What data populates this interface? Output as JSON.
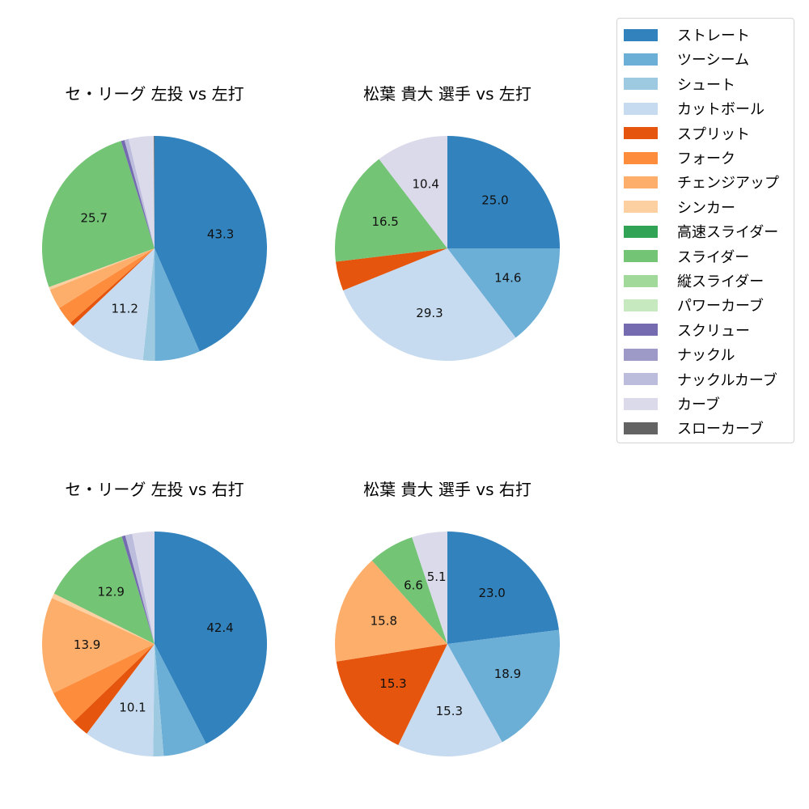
{
  "legend": {
    "items": [
      {
        "label": "ストレート",
        "color": "#3182bd"
      },
      {
        "label": "ツーシーム",
        "color": "#6baed6"
      },
      {
        "label": "シュート",
        "color": "#9ecae1"
      },
      {
        "label": "カットボール",
        "color": "#c6dbef"
      },
      {
        "label": "スプリット",
        "color": "#e6550d"
      },
      {
        "label": "フォーク",
        "color": "#fd8d3c"
      },
      {
        "label": "チェンジアップ",
        "color": "#fdae6b"
      },
      {
        "label": "シンカー",
        "color": "#fdd0a2"
      },
      {
        "label": "高速スライダー",
        "color": "#31a354"
      },
      {
        "label": "スライダー",
        "color": "#74c476"
      },
      {
        "label": "縦スライダー",
        "color": "#a1d99b"
      },
      {
        "label": "パワーカーブ",
        "color": "#c7e9c0"
      },
      {
        "label": "スクリュー",
        "color": "#756bb1"
      },
      {
        "label": "ナックル",
        "color": "#9e9ac8"
      },
      {
        "label": "ナックルカーブ",
        "color": "#bcbddc"
      },
      {
        "label": "カーブ",
        "color": "#dadaeb"
      },
      {
        "label": "スローカーブ",
        "color": "#636363"
      }
    ]
  },
  "chart_data": [
    {
      "type": "pie",
      "title": "セ・リーグ 左投 vs 左打",
      "categories": [
        "ストレート",
        "ツーシーム",
        "シュート",
        "カットボール",
        "スプリット",
        "フォーク",
        "チェンジアップ",
        "シンカー",
        "スライダー",
        "スクリュー",
        "ナックルカーブ",
        "カーブ",
        "スローカーブ"
      ],
      "values": [
        43.3,
        6.5,
        1.7,
        11.2,
        0.6,
        2.6,
        2.9,
        0.4,
        25.7,
        0.5,
        0.6,
        3.6,
        0.1
      ],
      "colors": [
        "#3182bd",
        "#6baed6",
        "#9ecae1",
        "#c6dbef",
        "#e6550d",
        "#fd8d3c",
        "#fdae6b",
        "#fdd0a2",
        "#74c476",
        "#756bb1",
        "#bcbddc",
        "#dadaeb",
        "#636363"
      ],
      "labels_shown": [
        "43.3",
        "",
        "",
        "11.2",
        "",
        "",
        "",
        "",
        "25.7",
        "",
        "",
        "",
        ""
      ],
      "start_angle": 90,
      "direction": "clockwise"
    },
    {
      "type": "pie",
      "title": "松葉 貴大 選手 vs 左打",
      "categories": [
        "ストレート",
        "ツーシーム",
        "カットボール",
        "スプリット",
        "スライダー",
        "カーブ"
      ],
      "values": [
        25.0,
        14.6,
        29.3,
        4.2,
        16.5,
        10.4
      ],
      "colors": [
        "#3182bd",
        "#6baed6",
        "#c6dbef",
        "#e6550d",
        "#74c476",
        "#dadaeb"
      ],
      "labels_shown": [
        "25.0",
        "14.6",
        "29.3",
        "",
        "16.5",
        "10.4"
      ],
      "start_angle": 90,
      "direction": "clockwise"
    },
    {
      "type": "pie",
      "title": "セ・リーグ 左投 vs 右打",
      "categories": [
        "ストレート",
        "ツーシーム",
        "シュート",
        "カットボール",
        "スプリット",
        "フォーク",
        "チェンジアップ",
        "シンカー",
        "スライダー",
        "スクリュー",
        "ナックルカーブ",
        "カーブ"
      ],
      "values": [
        42.4,
        6.3,
        1.5,
        10.1,
        2.5,
        5.0,
        13.9,
        0.7,
        12.9,
        0.5,
        1.0,
        3.2
      ],
      "colors": [
        "#3182bd",
        "#6baed6",
        "#9ecae1",
        "#c6dbef",
        "#e6550d",
        "#fd8d3c",
        "#fdae6b",
        "#fdd0a2",
        "#74c476",
        "#756bb1",
        "#bcbddc",
        "#dadaeb"
      ],
      "labels_shown": [
        "42.4",
        "",
        "",
        "10.1",
        "",
        "",
        "13.9",
        "",
        "12.9",
        "",
        "",
        ""
      ],
      "start_angle": 90,
      "direction": "clockwise"
    },
    {
      "type": "pie",
      "title": "松葉 貴大 選手 vs 右打",
      "categories": [
        "ストレート",
        "ツーシーム",
        "カットボール",
        "スプリット",
        "チェンジアップ",
        "スライダー",
        "カーブ"
      ],
      "values": [
        23.0,
        18.9,
        15.3,
        15.3,
        15.8,
        6.6,
        5.1
      ],
      "colors": [
        "#3182bd",
        "#6baed6",
        "#c6dbef",
        "#e6550d",
        "#fdae6b",
        "#74c476",
        "#dadaeb"
      ],
      "labels_shown": [
        "23.0",
        "18.9",
        "15.3",
        "15.3",
        "15.8",
        "6.6",
        "5.1"
      ],
      "start_angle": 90,
      "direction": "clockwise"
    }
  ]
}
